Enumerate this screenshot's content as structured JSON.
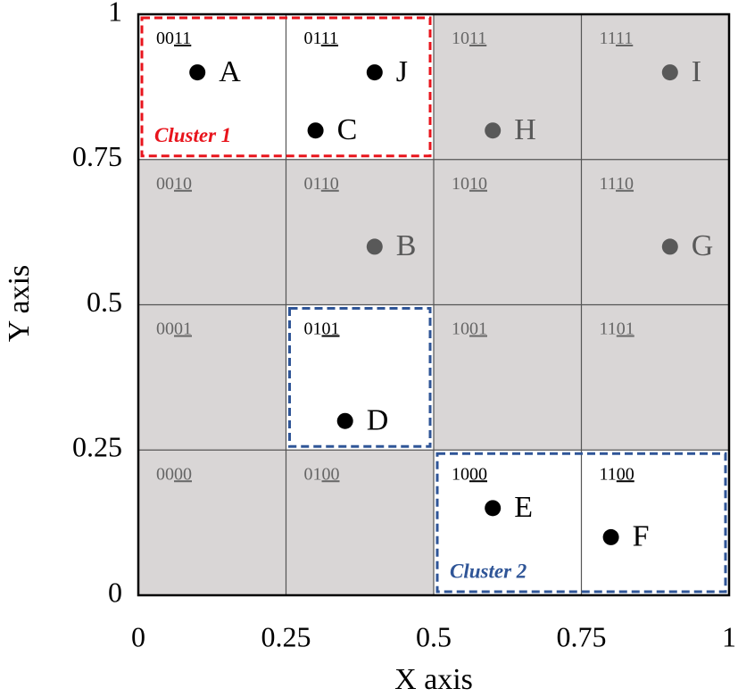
{
  "chart_data": {
    "type": "scatter",
    "xlabel": "X axis",
    "ylabel": "Y axis",
    "xlim": [
      0,
      1
    ],
    "ylim": [
      0,
      1
    ],
    "xticks": [
      0,
      0.25,
      0.5,
      0.75,
      1
    ],
    "yticks": [
      0,
      0.25,
      0.5,
      0.75,
      1
    ],
    "cell_color": "#d9d6d6",
    "highlight_color": "#ffffff",
    "cells": [
      {
        "label": "0011",
        "x": 0,
        "y": 0.75,
        "highlight": true
      },
      {
        "label": "0111",
        "x": 0.25,
        "y": 0.75,
        "highlight": true
      },
      {
        "label": "1011",
        "x": 0.5,
        "y": 0.75,
        "highlight": false
      },
      {
        "label": "1111",
        "x": 0.75,
        "y": 0.75,
        "highlight": false
      },
      {
        "label": "0010",
        "x": 0,
        "y": 0.5,
        "highlight": false
      },
      {
        "label": "0110",
        "x": 0.25,
        "y": 0.5,
        "highlight": false
      },
      {
        "label": "1010",
        "x": 0.5,
        "y": 0.5,
        "highlight": false
      },
      {
        "label": "1110",
        "x": 0.75,
        "y": 0.5,
        "highlight": false
      },
      {
        "label": "0001",
        "x": 0,
        "y": 0.25,
        "highlight": false
      },
      {
        "label": "0101",
        "x": 0.25,
        "y": 0.25,
        "highlight": true
      },
      {
        "label": "1001",
        "x": 0.5,
        "y": 0.25,
        "highlight": false
      },
      {
        "label": "1101",
        "x": 0.75,
        "y": 0.25,
        "highlight": false
      },
      {
        "label": "0000",
        "x": 0,
        "y": 0,
        "highlight": false
      },
      {
        "label": "0100",
        "x": 0.25,
        "y": 0,
        "highlight": false
      },
      {
        "label": "1000",
        "x": 0.5,
        "y": 0,
        "highlight": true
      },
      {
        "label": "1100",
        "x": 0.75,
        "y": 0,
        "highlight": true
      }
    ],
    "points": [
      {
        "name": "A",
        "x": 0.1,
        "y": 0.9,
        "color": "#000000"
      },
      {
        "name": "J",
        "x": 0.4,
        "y": 0.9,
        "color": "#000000"
      },
      {
        "name": "C",
        "x": 0.3,
        "y": 0.8,
        "color": "#000000"
      },
      {
        "name": "H",
        "x": 0.6,
        "y": 0.8,
        "color": "#595959"
      },
      {
        "name": "I",
        "x": 0.9,
        "y": 0.9,
        "color": "#595959"
      },
      {
        "name": "B",
        "x": 0.4,
        "y": 0.6,
        "color": "#595959"
      },
      {
        "name": "G",
        "x": 0.9,
        "y": 0.6,
        "color": "#595959"
      },
      {
        "name": "D",
        "x": 0.35,
        "y": 0.3,
        "color": "#000000"
      },
      {
        "name": "E",
        "x": 0.6,
        "y": 0.15,
        "color": "#000000"
      },
      {
        "name": "F",
        "x": 0.8,
        "y": 0.1,
        "color": "#000000"
      }
    ],
    "clusters": [
      {
        "name": "Cluster 1",
        "color": "#e8141c",
        "boxes": [
          {
            "xlim": [
              0,
              0.5
            ],
            "ylim": [
              0.75,
              1
            ]
          }
        ]
      },
      {
        "name": "Cluster 2",
        "color": "#2f5597",
        "boxes": [
          {
            "xlim": [
              0.5,
              1
            ],
            "ylim": [
              0,
              0.25
            ]
          },
          {
            "xlim": [
              0.25,
              0.5
            ],
            "ylim": [
              0.25,
              0.5
            ]
          }
        ]
      }
    ]
  }
}
